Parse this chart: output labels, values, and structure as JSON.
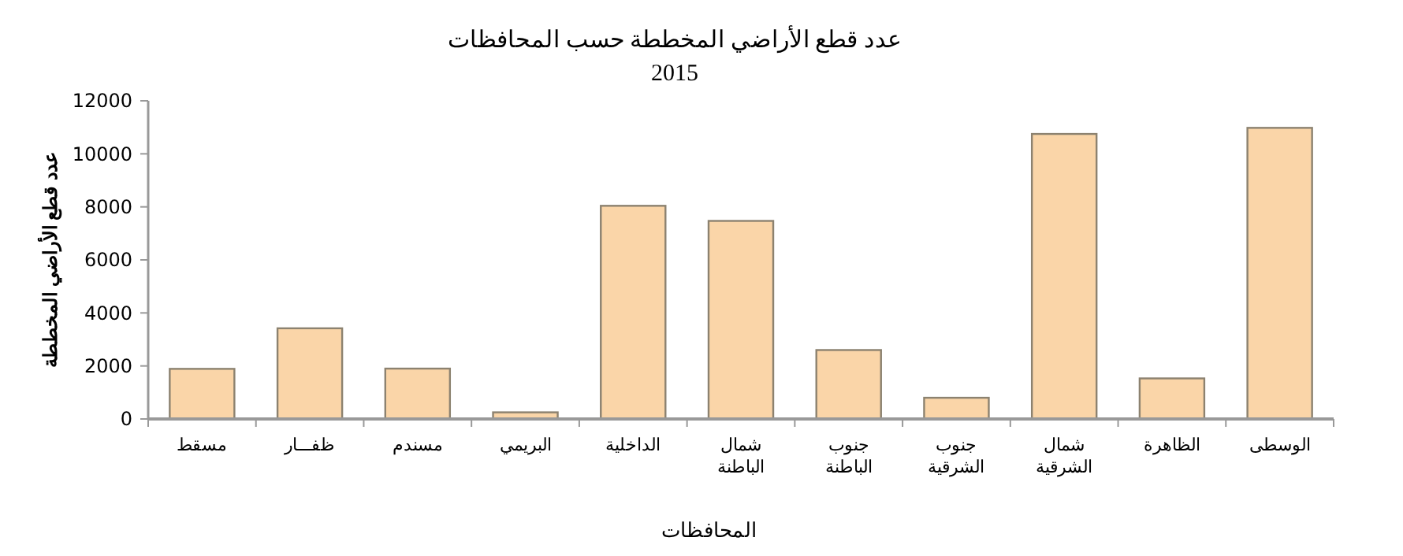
{
  "chart_data": {
    "type": "bar",
    "title": "عدد قطع الأراضي المخططة حسب المحافظات",
    "subtitle": "2015",
    "xlabel": "المحافظات",
    "ylabel": "عدد قطع الأراضي المخططة",
    "categories": [
      "مسقط",
      "ظفـــار",
      "مسندم",
      "البريمي",
      "الداخلية",
      "شمال الباطنة",
      "جنوب الباطنة",
      "جنوب الشرقية",
      "شمال الشرقية",
      "الظاهرة",
      "الوسطى"
    ],
    "values": [
      1890,
      3420,
      1900,
      250,
      8040,
      7470,
      2600,
      800,
      10750,
      1530,
      10980
    ],
    "color": "#fad5a8",
    "ylim": [
      0,
      12000
    ],
    "yticks": [
      0,
      2000,
      4000,
      6000,
      8000,
      10000,
      12000
    ],
    "grid": false
  }
}
